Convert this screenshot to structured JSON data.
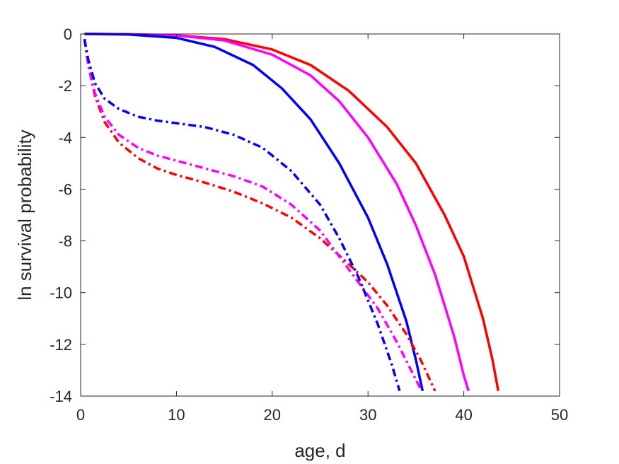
{
  "chart_data": {
    "type": "line",
    "title": "",
    "xlabel": "age, d",
    "ylabel": "ln survival probability",
    "xlim": [
      0,
      50
    ],
    "ylim": [
      -14,
      0
    ],
    "xticks": [
      "0",
      "10",
      "20",
      "30",
      "40",
      "50"
    ],
    "yticks": [
      "0",
      "-2",
      "-4",
      "-6",
      "-8",
      "-10",
      "-12",
      "-14"
    ],
    "grid": false,
    "legend": "none",
    "series": [
      {
        "color": "#ff0000",
        "style": "solid",
        "points": [
          [
            0.4,
            0
          ],
          [
            5,
            -0.01
          ],
          [
            10,
            -0.05
          ],
          [
            15,
            -0.2
          ],
          [
            20,
            -0.6
          ],
          [
            24,
            -1.2
          ],
          [
            28,
            -2.2
          ],
          [
            32,
            -3.6
          ],
          [
            35,
            -5.0
          ],
          [
            38,
            -7.0
          ],
          [
            40,
            -8.6
          ],
          [
            42,
            -11.0
          ],
          [
            43,
            -12.6
          ],
          [
            43.6,
            -13.8
          ]
        ]
      },
      {
        "color": "#ff00ff",
        "style": "solid",
        "points": [
          [
            0.4,
            0
          ],
          [
            5,
            -0.01
          ],
          [
            10,
            -0.06
          ],
          [
            15,
            -0.25
          ],
          [
            20,
            -0.8
          ],
          [
            24,
            -1.6
          ],
          [
            27,
            -2.6
          ],
          [
            30,
            -4.0
          ],
          [
            33,
            -5.8
          ],
          [
            35,
            -7.4
          ],
          [
            37,
            -9.3
          ],
          [
            39,
            -11.7
          ],
          [
            40,
            -13.2
          ],
          [
            40.5,
            -13.8
          ]
        ]
      },
      {
        "color": "#0000ff",
        "style": "solid",
        "points": [
          [
            0.4,
            0
          ],
          [
            5,
            -0.02
          ],
          [
            10,
            -0.15
          ],
          [
            14,
            -0.5
          ],
          [
            18,
            -1.2
          ],
          [
            21,
            -2.1
          ],
          [
            24,
            -3.3
          ],
          [
            27,
            -5.0
          ],
          [
            30,
            -7.1
          ],
          [
            32,
            -8.9
          ],
          [
            34,
            -11.1
          ],
          [
            35,
            -12.6
          ],
          [
            35.7,
            -13.8
          ]
        ]
      },
      {
        "color": "#ff0000",
        "style": "dashdot",
        "points": [
          [
            0.4,
            -0.2
          ],
          [
            0.8,
            -1.2
          ],
          [
            1.5,
            -2.4
          ],
          [
            2.5,
            -3.4
          ],
          [
            4,
            -4.2
          ],
          [
            6,
            -4.8
          ],
          [
            8,
            -5.2
          ],
          [
            10,
            -5.45
          ],
          [
            13,
            -5.75
          ],
          [
            16,
            -6.1
          ],
          [
            19,
            -6.55
          ],
          [
            22,
            -7.1
          ],
          [
            25,
            -7.9
          ],
          [
            28,
            -8.9
          ],
          [
            30,
            -9.6
          ],
          [
            32,
            -10.5
          ],
          [
            34,
            -11.6
          ],
          [
            35.5,
            -12.6
          ],
          [
            37,
            -13.8
          ]
        ]
      },
      {
        "color": "#ff00ff",
        "style": "dashdot",
        "points": [
          [
            0.4,
            -0.2
          ],
          [
            0.8,
            -1.2
          ],
          [
            1.5,
            -2.3
          ],
          [
            2.5,
            -3.2
          ],
          [
            4,
            -3.9
          ],
          [
            6,
            -4.4
          ],
          [
            8,
            -4.7
          ],
          [
            10,
            -4.9
          ],
          [
            13,
            -5.2
          ],
          [
            16,
            -5.5
          ],
          [
            19,
            -5.9
          ],
          [
            22,
            -6.6
          ],
          [
            25,
            -7.6
          ],
          [
            27,
            -8.6
          ],
          [
            29,
            -9.6
          ],
          [
            31,
            -10.6
          ],
          [
            33,
            -11.9
          ],
          [
            34.5,
            -13.0
          ],
          [
            35.6,
            -13.8
          ]
        ]
      },
      {
        "color": "#0000ff",
        "style": "dashdot",
        "points": [
          [
            0.4,
            -0.2
          ],
          [
            0.8,
            -1.0
          ],
          [
            1.5,
            -1.9
          ],
          [
            2.5,
            -2.5
          ],
          [
            4,
            -2.9
          ],
          [
            6,
            -3.2
          ],
          [
            8,
            -3.35
          ],
          [
            10,
            -3.45
          ],
          [
            13,
            -3.6
          ],
          [
            16,
            -3.9
          ],
          [
            19,
            -4.4
          ],
          [
            22,
            -5.3
          ],
          [
            25,
            -6.6
          ],
          [
            27,
            -7.9
          ],
          [
            29,
            -9.4
          ],
          [
            31,
            -11.2
          ],
          [
            32.5,
            -12.8
          ],
          [
            33.3,
            -13.8
          ]
        ]
      }
    ]
  }
}
